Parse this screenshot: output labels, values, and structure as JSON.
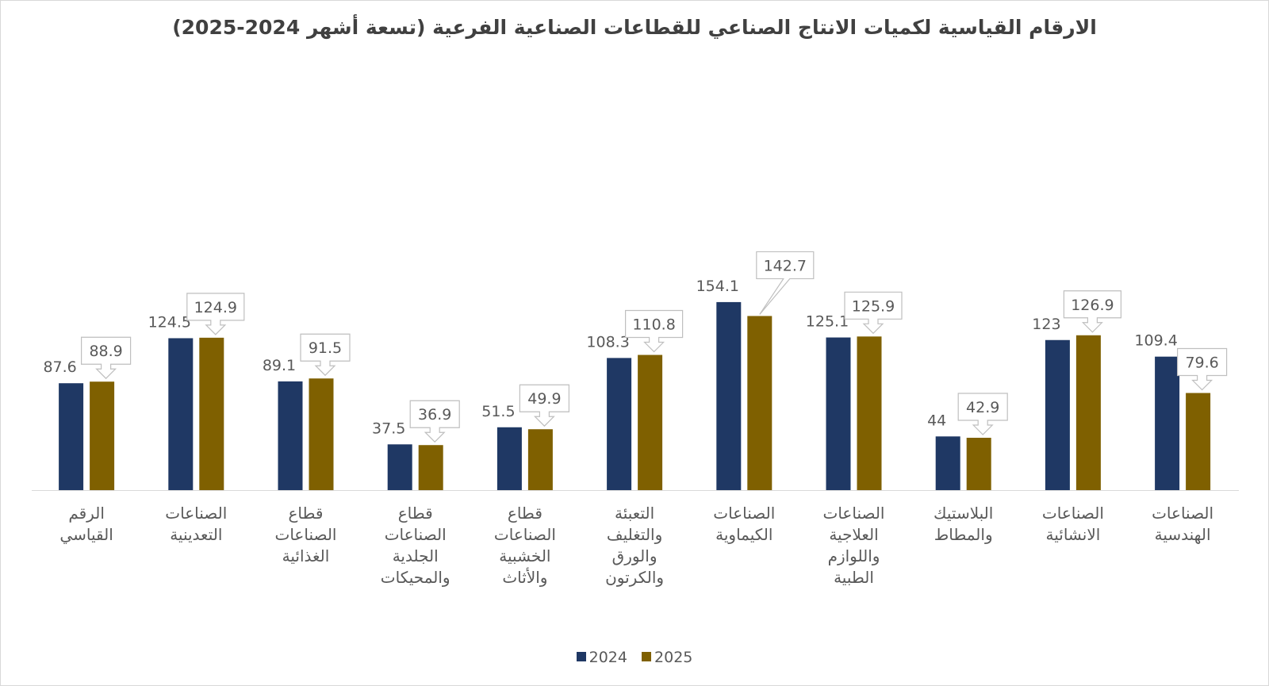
{
  "chart_data": {
    "type": "bar",
    "title": "الارقام القياسية لكميات الانتاج الصناعي للقطاعات الصناعية الفرعية (تسعة أشهر 2024-2025)",
    "categories": [
      [
        "الرقم",
        "القياسي"
      ],
      [
        "الصناعات",
        "التعدينية"
      ],
      [
        "قطاع",
        "الصناعات",
        "الغذائية"
      ],
      [
        "قطاع",
        "الصناعات",
        "الجلدية",
        "والمحيكات"
      ],
      [
        "قطاع",
        "الصناعات",
        "الخشبية",
        "والأثاث"
      ],
      [
        "التعبئة",
        "والتغليف",
        "والورق",
        "والكرتون"
      ],
      [
        "الصناعات",
        "الكيماوية"
      ],
      [
        "الصناعات",
        "العلاجية",
        "واللوازم",
        "الطبية"
      ],
      [
        "البلاستيك",
        "والمطاط"
      ],
      [
        "الصناعات",
        "الانشائية"
      ],
      [
        "الصناعات",
        "الهندسية"
      ]
    ],
    "series": [
      {
        "name": "2024",
        "color": "#1F3864",
        "values": [
          87.6,
          124.5,
          89.1,
          37.5,
          51.5,
          108.3,
          154.1,
          125.1,
          44,
          123,
          109.4
        ],
        "labels": [
          "87.6",
          "124.5",
          "89.1",
          "37.5",
          "51.5",
          "108.3",
          "154.1",
          "125.1",
          "44",
          "123",
          "109.4"
        ]
      },
      {
        "name": "2025",
        "color": "#7F6000",
        "values": [
          88.9,
          124.9,
          91.5,
          36.9,
          49.9,
          110.8,
          142.7,
          125.9,
          42.9,
          126.9,
          79.6
        ],
        "labels": [
          "88.9",
          "124.9",
          "91.5",
          "36.9",
          "49.9",
          "110.8",
          "142.7",
          "125.9",
          "42.9",
          "126.9",
          "79.6"
        ]
      }
    ],
    "ylim": [
      0,
      175
    ],
    "grid": false,
    "legend": "bottom"
  }
}
